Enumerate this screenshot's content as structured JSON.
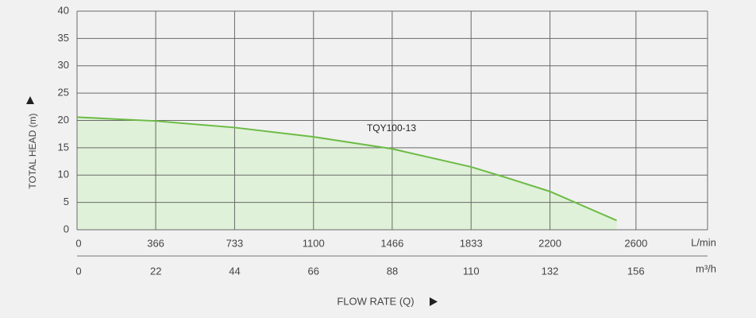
{
  "chart_data": {
    "type": "line",
    "y_label": "TOTAL HEAD (m)",
    "x_label": "FLOW RATE (Q)",
    "x_unit": "L/min",
    "x2_unit": "m³/h",
    "xlim": [
      0,
      2933
    ],
    "xticks": [
      0,
      366,
      733,
      1100,
      1466,
      1833,
      2200,
      2600
    ],
    "x2lim": [
      0,
      176
    ],
    "x2ticks": [
      0,
      22,
      44,
      66,
      88,
      110,
      132,
      156
    ],
    "ylim": [
      0,
      40
    ],
    "yticks": [
      0,
      5,
      10,
      15,
      20,
      25,
      30,
      35,
      40
    ],
    "grid": true,
    "series": [
      {
        "name": "TQY100-13",
        "color": "#6cbb45",
        "fill": "#dff1d8",
        "x": [
          0,
          366,
          733,
          1100,
          1466,
          1833,
          2000,
          2200,
          2510
        ],
        "values": [
          20.6,
          19.9,
          18.7,
          17.0,
          14.8,
          11.5,
          9.5,
          7.0,
          1.7
        ]
      }
    ]
  }
}
